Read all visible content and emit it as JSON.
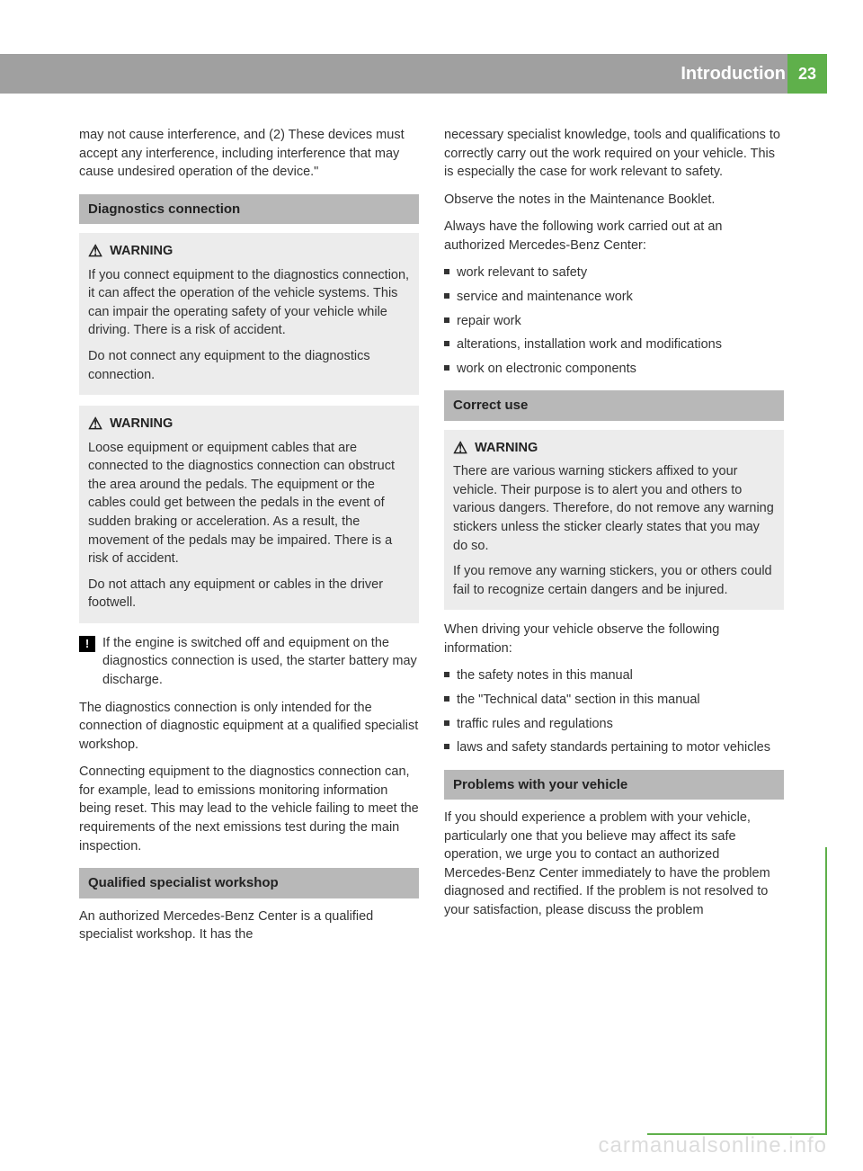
{
  "header": {
    "chapter": "Introduction",
    "page_number": "23"
  },
  "colors": {
    "accent": "#5fb04b",
    "header_bar": "#a0a0a0",
    "section_header": "#b8b8b8",
    "warning_bg": "#ececec",
    "text": "#333333",
    "watermark": "#dcdcdc"
  },
  "intro_continuation": "may not cause interference, and (2) These devices must accept any interference, including interference that may cause undesired operation of the device.\"",
  "sections": {
    "diagnostics": {
      "title": "Diagnostics connection",
      "warning1": {
        "label": "WARNING",
        "p1": "If you connect equipment to the diagnostics connection, it can affect the operation of the vehicle systems. This can impair the operating safety of your vehicle while driving. There is a risk of accident.",
        "p2": "Do not connect any equipment to the diagnostics connection."
      },
      "warning2": {
        "label": "WARNING",
        "p1": "Loose equipment or equipment cables that are connected to the diagnostics connection can obstruct the area around the pedals. The equipment or the cables could get between the pedals in the event of sudden braking or acceleration. As a result, the movement of the pedals may be impaired. There is a risk of accident.",
        "p2": "Do not attach any equipment or cables in the driver footwell."
      },
      "note": "If the engine is switched off and equipment on the diagnostics connection is used, the starter battery may discharge.",
      "body1": "The diagnostics connection is only intended for the connection of diagnostic equipment at a qualified specialist workshop.",
      "body2": "Connecting equipment to the diagnostics connection can, for example, lead to emissions monitoring information being reset. This may lead to the vehicle failing to meet the requirements of the next emissions test during the main inspection."
    },
    "workshop": {
      "title": "Qualified specialist workshop",
      "p1": "An authorized Mercedes-Benz Center is a qualified specialist workshop. It has the",
      "p1_cont": "necessary specialist knowledge, tools and qualifications to correctly carry out the work required on your vehicle. This is especially the case for work relevant to safety.",
      "p2": "Observe the notes in the Maintenance Booklet.",
      "p3": "Always have the following work carried out at an authorized Mercedes-Benz Center:",
      "bullets": [
        "work relevant to safety",
        "service and maintenance work",
        "repair work",
        "alterations, installation work and modifications",
        "work on electronic components"
      ]
    },
    "correct_use": {
      "title": "Correct use",
      "warning": {
        "label": "WARNING",
        "p1": "There are various warning stickers affixed to your vehicle. Their purpose is to alert you and others to various dangers. Therefore, do not remove any warning stickers unless the sticker clearly states that you may do so.",
        "p2": "If you remove any warning stickers, you or others could fail to recognize certain dangers and be injured."
      },
      "body_intro": "When driving your vehicle observe the following information:",
      "bullets": [
        "the safety notes in this manual",
        "the \"Technical data\" section in this manual",
        "traffic rules and regulations",
        "laws and safety standards pertaining to motor vehicles"
      ]
    },
    "problems": {
      "title": "Problems with your vehicle",
      "p1": "If you should experience a problem with your vehicle, particularly one that you believe may affect its safe operation, we urge you to contact an authorized Mercedes-Benz Center immediately to have the problem diagnosed and rectified. If the problem is not resolved to your satisfaction, please discuss the problem"
    }
  },
  "watermark": "carmanualsonline.info"
}
